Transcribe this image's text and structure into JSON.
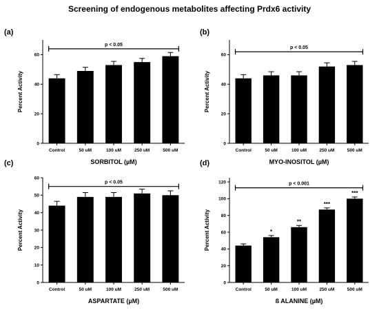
{
  "title": "Screening of endogenous metabolites affecting Prdx6 activity",
  "chart_data": [
    {
      "type": "bar",
      "panel": "(a)",
      "categories": [
        "Control",
        "50 uM",
        "100 uM",
        "250 uM",
        "500 uM"
      ],
      "values": [
        44,
        49,
        53,
        55,
        59
      ],
      "errors": [
        2.5,
        2.5,
        2.5,
        2.5,
        2.5
      ],
      "significance": [
        "",
        "",
        "",
        "",
        ""
      ],
      "ylabel": "Percent Activity",
      "xlabel": "SORBITOL (µM)",
      "ylim": [
        0,
        70
      ],
      "yticks": [
        0,
        20,
        40,
        60
      ],
      "bracket_label": "p < 0.05",
      "bracket_value": 64
    },
    {
      "type": "bar",
      "panel": "(b)",
      "categories": [
        "Control",
        "50 uM",
        "100 uM",
        "250 uM",
        "500 uM"
      ],
      "values": [
        44,
        46,
        46,
        52,
        53
      ],
      "errors": [
        2.5,
        2.5,
        2.5,
        2.5,
        2.5
      ],
      "significance": [
        "",
        "",
        "",
        "",
        ""
      ],
      "ylabel": "Percent Activity",
      "xlabel": "MYO-INOSITOL (µM)",
      "ylim": [
        0,
        70
      ],
      "yticks": [
        0,
        20,
        40,
        60
      ],
      "bracket_label": "p < 0.05",
      "bracket_value": 62
    },
    {
      "type": "bar",
      "panel": "(c)",
      "categories": [
        "Control",
        "50 uM",
        "100 uM",
        "250 uM",
        "500 uM"
      ],
      "values": [
        44,
        49,
        49,
        51,
        50
      ],
      "errors": [
        2.5,
        2.5,
        2.5,
        2.5,
        2.5
      ],
      "significance": [
        "",
        "",
        "",
        "",
        ""
      ],
      "ylabel": "Percent Activity",
      "xlabel": "ASPARTATE (µM)",
      "ylim": [
        0,
        60
      ],
      "yticks": [
        0,
        10,
        20,
        30,
        40,
        50,
        60
      ],
      "bracket_label": "p < 0.05",
      "bracket_value": 55
    },
    {
      "type": "bar",
      "panel": "(d)",
      "categories": [
        "Control",
        "50 uM",
        "100 uM",
        "250 uM",
        "500 uM"
      ],
      "values": [
        44,
        54,
        66,
        87,
        100
      ],
      "errors": [
        2,
        2,
        2,
        2,
        2
      ],
      "significance": [
        "",
        "*",
        "**",
        "***",
        "***"
      ],
      "ylabel": "Percent Activity",
      "xlabel": "ß ALANINE  (µM)",
      "ylim": [
        0,
        125
      ],
      "yticks": [
        0,
        20,
        40,
        60,
        80,
        100,
        120
      ],
      "bracket_label": "p < 0.001",
      "bracket_value": 113
    }
  ]
}
